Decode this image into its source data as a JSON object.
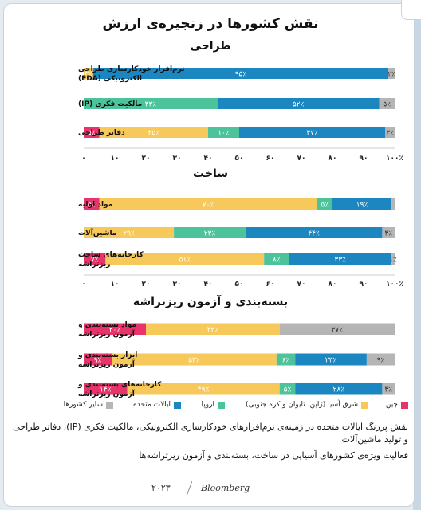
{
  "title": "نقش کشورها در زنجیره‌ی ارزش",
  "colors": {
    "china": "#e8336b",
    "east_asia": "#f7c85a",
    "europe": "#4cc39a",
    "usa": "#1b86c0",
    "other": "#b5b5b5"
  },
  "legend": [
    {
      "key": "china",
      "label": "چین"
    },
    {
      "key": "east_asia",
      "label": "شرق آسیا (ژاپن، تایوان و کره جنوبی)"
    },
    {
      "key": "europe",
      "label": "اروپا"
    },
    {
      "key": "usa",
      "label": "ایالات متحده"
    },
    {
      "key": "other",
      "label": "سایر کشورها"
    }
  ],
  "chart_data": [
    {
      "type": "bar",
      "orientation": "horizontal-stacked",
      "title": "طراحی",
      "categories": [
        "نرم‌افزار خودکارسازی طراحی الکترونیکی (EDA)",
        "مالکیت فکری (IP)",
        "دفاتر طراحی"
      ],
      "series": [
        {
          "name": "چین",
          "values": [
            0,
            0,
            5
          ],
          "labels": [
            "",
            "",
            "۵٪"
          ]
        },
        {
          "name": "شرق آسیا (ژاپن، تایوان و کره جنوبی)",
          "values": [
            3,
            0,
            35
          ],
          "labels": [
            "۳٪",
            "",
            "۳۵٪"
          ]
        },
        {
          "name": "اروپا",
          "values": [
            0,
            43,
            10
          ],
          "labels": [
            "",
            "۴۳٪",
            "۱۰٪"
          ]
        },
        {
          "name": "ایالات متحده",
          "values": [
            95,
            52,
            47
          ],
          "labels": [
            "۹۵٪",
            "۵۲٪",
            "۴۷٪"
          ]
        },
        {
          "name": "سایر کشورها",
          "values": [
            2,
            5,
            3
          ],
          "labels": [
            "۲٪",
            "۵٪",
            "۳٪"
          ]
        }
      ],
      "ticks": [
        "۰",
        "۱۰",
        "۲۰",
        "۳۰",
        "۴۰",
        "۵۰",
        "۶۰",
        "۷۰",
        "۸۰",
        "۹۰",
        "۱۰۰٪"
      ],
      "xlim": [
        0,
        100
      ]
    },
    {
      "type": "bar",
      "orientation": "horizontal-stacked",
      "title": "ساخت",
      "categories": [
        "مواد اولیه",
        "ماشین‌آلات",
        "کارخانه‌های ساخت ریزتراشه"
      ],
      "series": [
        {
          "name": "چین",
          "values": [
            5,
            0,
            7
          ],
          "labels": [
            "۵٪",
            "",
            "۷٪"
          ]
        },
        {
          "name": "شرق آسیا (ژاپن، تایوان و کره جنوبی)",
          "values": [
            70,
            29,
            51
          ],
          "labels": [
            "۷۰٪",
            "۲۹٪",
            "۵۱٪"
          ]
        },
        {
          "name": "اروپا",
          "values": [
            5,
            23,
            8
          ],
          "labels": [
            "۵٪",
            "۲۳٪",
            "۸٪"
          ]
        },
        {
          "name": "ایالات متحده",
          "values": [
            19,
            44,
            33
          ],
          "labels": [
            "۱۹٪",
            "۴۴٪",
            "۳۳٪"
          ]
        },
        {
          "name": "سایر کشورها",
          "values": [
            1,
            4,
            1
          ],
          "labels": [
            "",
            "۴٪",
            "۱٪"
          ]
        }
      ],
      "ticks": [
        "۰",
        "۱۰",
        "۲۰",
        "۳۰",
        "۴۰",
        "۵۰",
        "۶۰",
        "۷۰",
        "۸۰",
        "۹۰",
        "۱۰۰٪"
      ],
      "xlim": [
        0,
        100
      ]
    },
    {
      "type": "bar",
      "orientation": "horizontal-stacked",
      "title": "بسته‌بندی و آزمون ریزتراشه",
      "categories": [
        "مواد بسته‌بندی و آزمون ریزتراشه",
        "ابزار بسته‌بندی و آزمون ریزتراشه",
        "کارخانه‌های بسته‌بندی و آزمون ریزتراشه"
      ],
      "series": [
        {
          "name": "چین",
          "values": [
            20,
            9,
            14
          ],
          "labels": [
            "۲۰٪",
            "۹٪",
            "۱۴٪"
          ]
        },
        {
          "name": "شرق آسیا (ژاپن، تایوان و کره جنوبی)",
          "values": [
            43,
            53,
            49
          ],
          "labels": [
            "۴۳٪",
            "۵۳٪",
            "۴۹٪"
          ]
        },
        {
          "name": "اروپا",
          "values": [
            0,
            6,
            5
          ],
          "labels": [
            "",
            "۶٪",
            "۵٪"
          ]
        },
        {
          "name": "ایالات متحده",
          "values": [
            0,
            23,
            28
          ],
          "labels": [
            "",
            "۲۳٪",
            "۲۸٪"
          ]
        },
        {
          "name": "سایر کشورها",
          "values": [
            37,
            9,
            4
          ],
          "labels": [
            "۳۷٪",
            "۹٪",
            "۴٪"
          ]
        }
      ],
      "xlim": [
        0,
        100
      ]
    }
  ],
  "notes": [
    "نقش پررنگ ایالات متحده در زمینه‌ی نرم‌افزارهای خودکارسازی الکترونیکی، مالکیت فکری (IP)، دفاتر طراحی و تولید ماشین‌آلات",
    "فعالیت ویژه‌ی کشورهای آسیایی در ساخت، بسته‌بندی و آزمون ریزتراشه‌ها"
  ],
  "footer": {
    "source": "Bloomberg",
    "year": "۲۰۲۳"
  }
}
